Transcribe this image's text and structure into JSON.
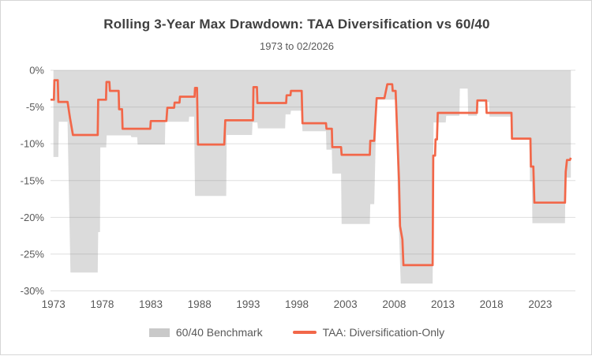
{
  "title": "Rolling 3-Year Max Drawdown: TAA Diversification vs 60/40",
  "subtitle": "1973 to 02/2026",
  "chart_data": {
    "type": "area",
    "title": "Rolling 3-Year Max Drawdown: TAA Diversification vs 60/40",
    "subtitle": "1973 to 02/2026",
    "grid": "horizontal",
    "legend_position": "bottom",
    "x_axis": {
      "range": [
        1972.7,
        2026.62
      ],
      "ticks": [
        1973,
        1978,
        1983,
        1988,
        1993,
        1998,
        2003,
        2008,
        2013,
        2018,
        2023
      ]
    },
    "y_axis": {
      "range": [
        0,
        -30
      ],
      "tick_values": [
        0,
        -5,
        -10,
        -15,
        -20,
        -25,
        -30
      ],
      "tick_labels": [
        "0%",
        "-5%",
        "-10%",
        "-15%",
        "-20%",
        "-25%",
        "-30%"
      ],
      "unit": "percent"
    },
    "series": [
      {
        "name": "60/40 Benchmark",
        "type": "area",
        "color": "#dbdbdb",
        "points": [
          [
            1973.0,
            -11.8
          ],
          [
            1973.5,
            -11.8
          ],
          [
            1973.55,
            -7.0
          ],
          [
            1974.45,
            -7.0
          ],
          [
            1974.55,
            -14.0
          ],
          [
            1974.75,
            -27.5
          ],
          [
            1977.55,
            -27.5
          ],
          [
            1977.6,
            -22.0
          ],
          [
            1977.78,
            -22.0
          ],
          [
            1977.82,
            -10.5
          ],
          [
            1978.42,
            -10.5
          ],
          [
            1978.47,
            -8.85
          ],
          [
            1980.95,
            -8.85
          ],
          [
            1981.0,
            -9.1
          ],
          [
            1981.6,
            -9.1
          ],
          [
            1981.65,
            -10.1
          ],
          [
            1984.45,
            -10.1
          ],
          [
            1984.5,
            -7.0
          ],
          [
            1986.9,
            -7.0
          ],
          [
            1986.95,
            -6.3
          ],
          [
            1987.45,
            -6.3
          ],
          [
            1987.55,
            -17.1
          ],
          [
            1990.75,
            -17.1
          ],
          [
            1990.8,
            -8.8
          ],
          [
            1993.4,
            -8.8
          ],
          [
            1993.45,
            -7.1
          ],
          [
            1993.95,
            -7.1
          ],
          [
            1994.0,
            -7.9
          ],
          [
            1996.8,
            -7.9
          ],
          [
            1996.85,
            -6.0
          ],
          [
            1997.35,
            -6.0
          ],
          [
            1997.4,
            -5.5
          ],
          [
            1998.5,
            -5.5
          ],
          [
            1998.58,
            -8.3
          ],
          [
            2001.0,
            -8.3
          ],
          [
            2001.05,
            -10.8
          ],
          [
            2001.6,
            -10.8
          ],
          [
            2001.65,
            -14.05
          ],
          [
            2002.55,
            -14.05
          ],
          [
            2002.6,
            -20.9
          ],
          [
            2005.5,
            -20.9
          ],
          [
            2005.55,
            -18.2
          ],
          [
            2005.95,
            -18.2
          ],
          [
            2006.2,
            -4.0
          ],
          [
            2008.15,
            -4.0
          ],
          [
            2008.4,
            -18.0
          ],
          [
            2008.68,
            -29.0
          ],
          [
            2011.95,
            -29.0
          ],
          [
            2012.05,
            -7.1
          ],
          [
            2013.3,
            -7.1
          ],
          [
            2013.35,
            -6.2
          ],
          [
            2014.7,
            -6.2
          ],
          [
            2014.75,
            -2.5
          ],
          [
            2015.55,
            -2.5
          ],
          [
            2015.6,
            -6.2
          ],
          [
            2016.5,
            -6.2
          ],
          [
            2016.55,
            -4.3
          ],
          [
            2017.75,
            -4.3
          ],
          [
            2017.8,
            -6.3
          ],
          [
            2020.05,
            -6.3
          ],
          [
            2020.1,
            -9.4
          ],
          [
            2021.9,
            -9.4
          ],
          [
            2021.95,
            -15.1
          ],
          [
            2022.15,
            -15.1
          ],
          [
            2022.2,
            -20.8
          ],
          [
            2025.55,
            -20.8
          ],
          [
            2025.6,
            -14.6
          ],
          [
            2026.15,
            -14.6
          ]
        ]
      },
      {
        "name": "TAA: Diversification-Only",
        "type": "line",
        "color": "#f26749",
        "points": [
          [
            1972.7,
            -4.0
          ],
          [
            1973.05,
            -4.0
          ],
          [
            1973.1,
            -1.35
          ],
          [
            1973.45,
            -1.35
          ],
          [
            1973.5,
            -4.3
          ],
          [
            1974.45,
            -4.3
          ],
          [
            1974.7,
            -6.5
          ],
          [
            1975.0,
            -8.8
          ],
          [
            1977.55,
            -8.8
          ],
          [
            1977.6,
            -4.0
          ],
          [
            1978.4,
            -4.0
          ],
          [
            1978.45,
            -1.6
          ],
          [
            1978.75,
            -1.6
          ],
          [
            1978.8,
            -2.8
          ],
          [
            1979.7,
            -2.8
          ],
          [
            1979.75,
            -5.3
          ],
          [
            1980.05,
            -5.3
          ],
          [
            1980.1,
            -7.95
          ],
          [
            1982.95,
            -7.95
          ],
          [
            1983.0,
            -6.9
          ],
          [
            1984.6,
            -6.9
          ],
          [
            1984.7,
            -5.1
          ],
          [
            1985.4,
            -5.1
          ],
          [
            1985.45,
            -4.4
          ],
          [
            1985.95,
            -4.4
          ],
          [
            1986.0,
            -3.6
          ],
          [
            1987.5,
            -3.6
          ],
          [
            1987.55,
            -2.4
          ],
          [
            1987.75,
            -2.4
          ],
          [
            1987.85,
            -10.1
          ],
          [
            1990.55,
            -10.1
          ],
          [
            1990.65,
            -6.8
          ],
          [
            1993.5,
            -6.8
          ],
          [
            1993.55,
            -2.3
          ],
          [
            1993.9,
            -2.3
          ],
          [
            1993.95,
            -4.45
          ],
          [
            1996.9,
            -4.45
          ],
          [
            1996.95,
            -3.4
          ],
          [
            1997.35,
            -3.4
          ],
          [
            1997.4,
            -2.8
          ],
          [
            1998.5,
            -2.8
          ],
          [
            1998.58,
            -7.2
          ],
          [
            2001.0,
            -7.2
          ],
          [
            2001.05,
            -7.95
          ],
          [
            2001.6,
            -7.95
          ],
          [
            2001.65,
            -10.45
          ],
          [
            2002.55,
            -10.45
          ],
          [
            2002.6,
            -11.5
          ],
          [
            2005.5,
            -11.5
          ],
          [
            2005.55,
            -9.6
          ],
          [
            2005.95,
            -9.6
          ],
          [
            2006.2,
            -3.8
          ],
          [
            2007.0,
            -3.8
          ],
          [
            2007.3,
            -1.9
          ],
          [
            2007.8,
            -1.9
          ],
          [
            2007.85,
            -2.8
          ],
          [
            2008.15,
            -2.8
          ],
          [
            2008.5,
            -15.0
          ],
          [
            2008.6,
            -21.2
          ],
          [
            2008.85,
            -23.0
          ],
          [
            2008.95,
            -26.5
          ],
          [
            2011.95,
            -26.5
          ],
          [
            2012.02,
            -11.6
          ],
          [
            2012.2,
            -11.6
          ],
          [
            2012.25,
            -9.4
          ],
          [
            2012.4,
            -9.4
          ],
          [
            2012.48,
            -5.8
          ],
          [
            2016.5,
            -5.8
          ],
          [
            2016.55,
            -4.1
          ],
          [
            2017.45,
            -4.1
          ],
          [
            2017.5,
            -5.8
          ],
          [
            2020.05,
            -5.8
          ],
          [
            2020.1,
            -9.3
          ],
          [
            2022.0,
            -9.3
          ],
          [
            2022.05,
            -13.1
          ],
          [
            2022.3,
            -13.1
          ],
          [
            2022.4,
            -18.0
          ],
          [
            2025.55,
            -18.0
          ],
          [
            2025.62,
            -13.8
          ],
          [
            2025.75,
            -12.2
          ],
          [
            2026.05,
            -12.2
          ],
          [
            2026.15,
            -11.9
          ]
        ]
      }
    ],
    "colors": {
      "benchmark_area": "#dbdbdb",
      "taa_line": "#f26749",
      "gridline": "#d2d2d2",
      "axis_text": "#595959",
      "title_text": "#3f3f3f"
    }
  },
  "legend": {
    "benchmark_label": "60/40 Benchmark",
    "taa_label": "TAA: Diversification-Only"
  }
}
